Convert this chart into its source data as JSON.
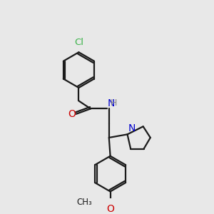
{
  "bg_color": "#e8e8e8",
  "bond_color": "#1a1a1a",
  "cl_color": "#3cb34a",
  "o_color": "#cc0000",
  "n_color": "#0000cc",
  "h_color": "#888888",
  "line_width": 1.6,
  "fig_size": [
    3.0,
    3.0
  ],
  "dpi": 100,
  "xlim": [
    0,
    300
  ],
  "ylim": [
    0,
    300
  ]
}
